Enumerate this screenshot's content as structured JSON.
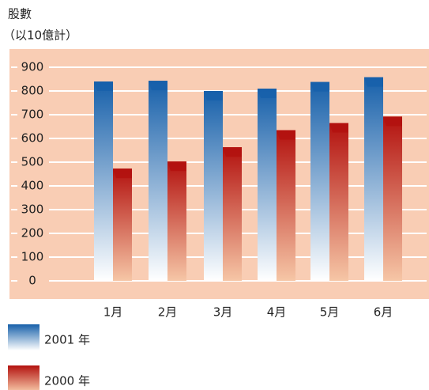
{
  "chart_data": {
    "type": "bar",
    "title": "股數",
    "ylabel": "（以10億計）",
    "categories": [
      "1月",
      "2月",
      "3月",
      "4月",
      "5月",
      "6月"
    ],
    "series": [
      {
        "name": "2001 年",
        "color": "#1760aa",
        "color_end": "#ffffff",
        "values": [
          840,
          843,
          800,
          810,
          838,
          858
        ]
      },
      {
        "name": "2000 年",
        "color": "#b3120f",
        "color_end": "#f6c6a6",
        "values": [
          473,
          503,
          563,
          635,
          665,
          692
        ]
      }
    ],
    "ylim": [
      0,
      900
    ],
    "yticks": [
      0,
      100,
      200,
      300,
      400,
      500,
      600,
      700,
      800,
      900
    ],
    "grid": true,
    "background": "#f9cdb4"
  }
}
